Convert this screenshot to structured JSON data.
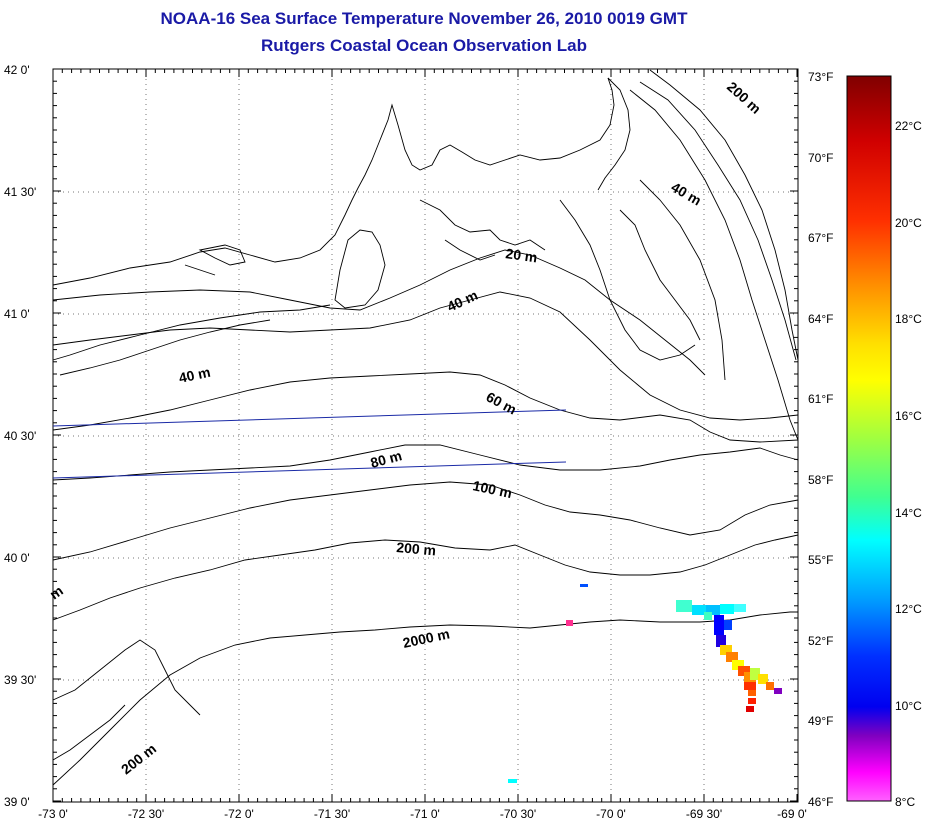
{
  "header": {
    "title": "NOAA-16 Sea Surface Temperature November 26, 2010 0019 GMT",
    "subtitle": "Rutgers Coastal Ocean Observation Lab"
  },
  "map": {
    "x_ticks": [
      "-73 0'",
      "-72 30'",
      "-72 0'",
      "-71 30'",
      "-71 0'",
      "-70 30'",
      "-70 0'",
      "-69 30'",
      "-69 0'"
    ],
    "y_ticks": [
      "42 0'",
      "41 30'",
      "41 0'",
      "40 30'",
      "40 0'",
      "39 30'",
      "39 0'"
    ],
    "contour_labels": [
      "200 m",
      "40 m",
      "20 m",
      "40 m",
      "40 m",
      "60 m",
      "80 m",
      "100 m",
      "200 m",
      "2000 m",
      "200 m",
      "m"
    ]
  },
  "colorbar": {
    "fahrenheit_labels": [
      "73°F",
      "70°F",
      "67°F",
      "64°F",
      "61°F",
      "58°F",
      "55°F",
      "52°F",
      "49°F",
      "46°F"
    ],
    "celsius_labels": [
      "22°C",
      "20°C",
      "18°C",
      "16°C",
      "14°C",
      "12°C",
      "10°C",
      "8°C"
    ],
    "colors": [
      "#800000",
      "#ff0000",
      "#ff8000",
      "#ffff00",
      "#80ff40",
      "#00ffff",
      "#0080ff",
      "#0000ff",
      "#8000c0",
      "#ff40ff"
    ]
  }
}
